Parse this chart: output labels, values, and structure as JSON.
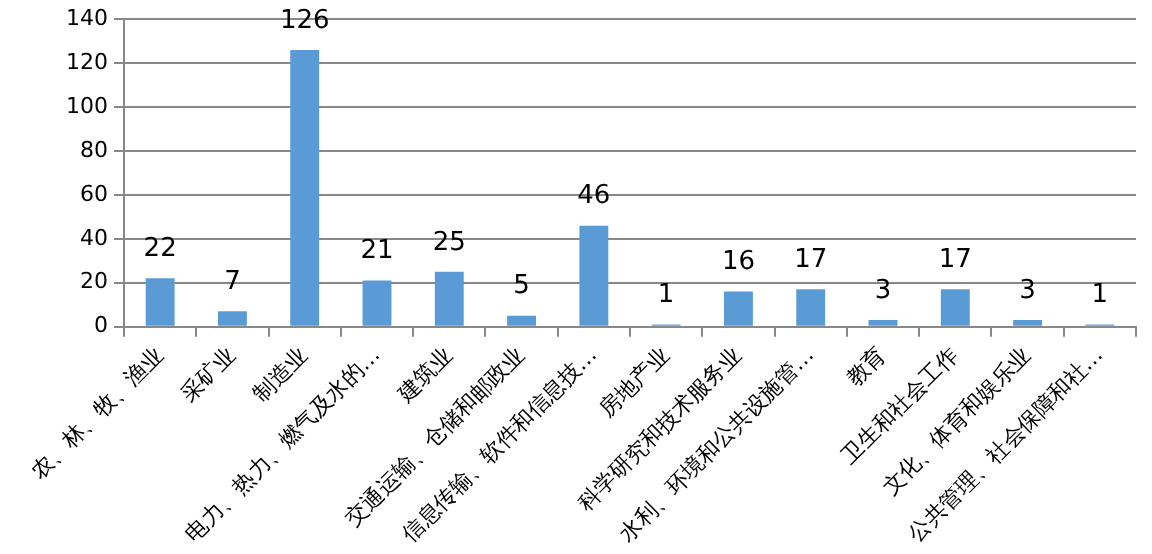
{
  "chart_data": {
    "type": "bar",
    "categories": [
      "农、林、牧、渔业",
      "采矿业",
      "制造业",
      "电力、热力、燃气及水的…",
      "建筑业",
      "交通运输、仓储和邮政业",
      "信息传输、软件和信息技…",
      "房地产业",
      "科学研究和技术服务业",
      "水利、环境和公共设施管…",
      "教育",
      "卫生和社会工作",
      "文化、体育和娱乐业",
      "公共管理、社会保障和社…"
    ],
    "values": [
      22,
      7,
      126,
      21,
      25,
      5,
      46,
      1,
      16,
      17,
      3,
      17,
      3,
      1
    ],
    "color": "#5b9bd5",
    "ylim": [
      0,
      140
    ],
    "yticks": [
      0,
      20,
      40,
      60,
      80,
      100,
      120,
      140
    ],
    "grid": "y",
    "data_labels": true,
    "legend": false
  }
}
